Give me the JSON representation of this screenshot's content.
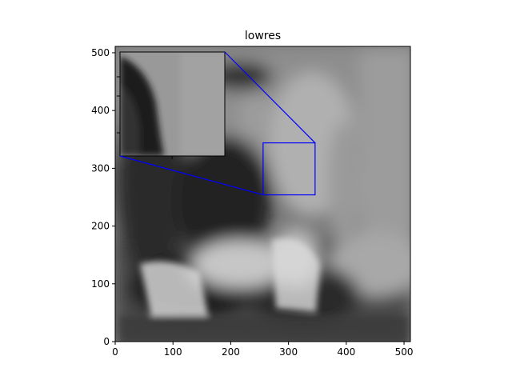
{
  "chart_data": {
    "type": "image",
    "title": "lowres",
    "xlabel": "",
    "ylabel": "",
    "xlim": [
      0,
      511
    ],
    "ylim": [
      0,
      511
    ],
    "xticks": [
      0,
      100,
      200,
      300,
      400,
      500
    ],
    "yticks": [
      0,
      100,
      200,
      300,
      400,
      500
    ],
    "image_description": "Low-resolution grayscale photo of a woman with long hair and a dark hat holding a baby, with another person standing behind in light clothing",
    "zoom_region": {
      "x": [
        256,
        346
      ],
      "y": [
        254,
        344
      ]
    },
    "zoom_inset": {
      "position": "upper-left"
    },
    "colors": {
      "indicator": "#0000ff",
      "axes": "#000000",
      "background": "#ffffff"
    }
  }
}
